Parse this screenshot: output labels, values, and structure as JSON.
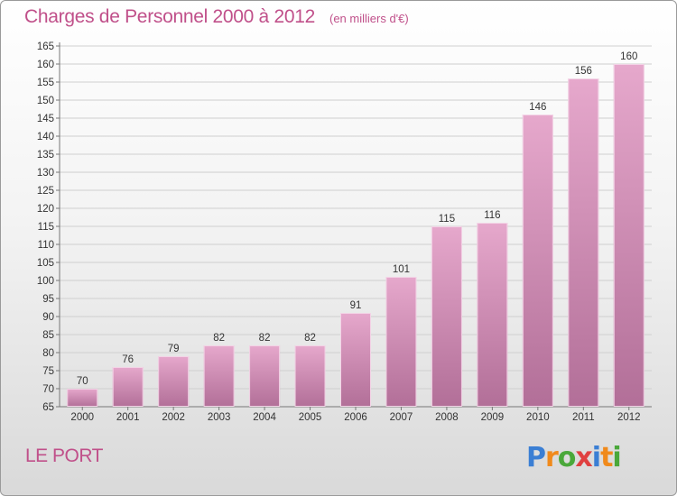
{
  "title": "Charges de Personnel 2000 à 2012",
  "unit": "(en milliers d'€)",
  "commune": "LE PORT",
  "logo": {
    "letters": [
      "P",
      "r",
      "o",
      "x",
      "i",
      "t",
      "i"
    ],
    "colors": [
      "#3b7fd4",
      "#f08a1c",
      "#4aa83a",
      "#e04040",
      "#3b7fd4",
      "#f08a1c",
      "#4aa83a"
    ]
  },
  "colors": {
    "bar_light": "#e6a8cc",
    "bar_dark": "#b26f98",
    "text_accent": "#c0508a"
  },
  "chart_data": {
    "type": "bar",
    "title": "Charges de Personnel 2000 à 2012",
    "categories": [
      "2000",
      "2001",
      "2002",
      "2003",
      "2004",
      "2005",
      "2006",
      "2007",
      "2008",
      "2009",
      "2010",
      "2011",
      "2012"
    ],
    "values": [
      70,
      76,
      79,
      82,
      82,
      82,
      91,
      101,
      115,
      116,
      146,
      156,
      160
    ],
    "ylim": [
      65,
      165
    ],
    "yticks": [
      65,
      70,
      75,
      80,
      85,
      90,
      95,
      100,
      105,
      110,
      115,
      120,
      125,
      130,
      135,
      140,
      145,
      150,
      155,
      160,
      165
    ],
    "grid": true,
    "xlabel": "",
    "ylabel": ""
  }
}
